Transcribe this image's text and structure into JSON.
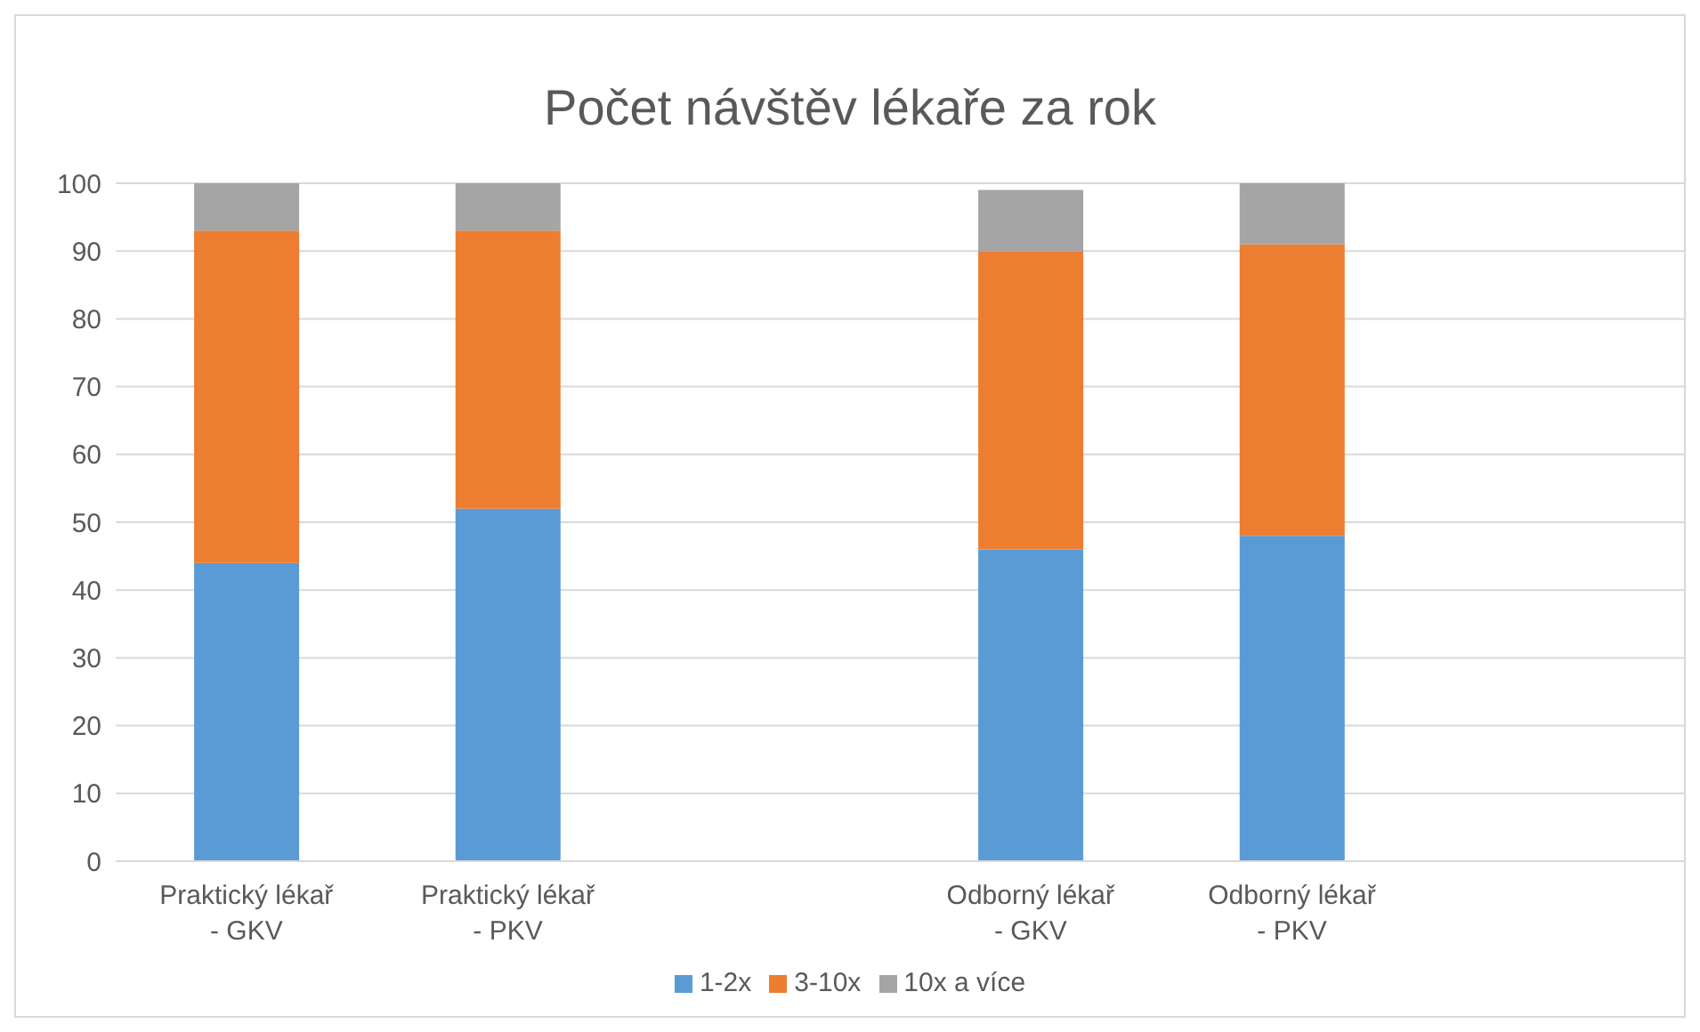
{
  "chart_data": {
    "type": "bar",
    "title": "Počet návštěv lékaře za rok",
    "categories": [
      "Praktický lékař - GKV",
      "Praktický lékař - PKV",
      null,
      "Odborný lékař - GKV",
      "Odborný lékař - PKV",
      null
    ],
    "series": [
      {
        "name": "1-2x",
        "color": "#5b9bd5",
        "values": [
          44,
          52,
          null,
          46,
          48,
          null
        ]
      },
      {
        "name": "3-10x",
        "color": "#ed7d31",
        "values": [
          49,
          41,
          null,
          44,
          43,
          null
        ]
      },
      {
        "name": "10x a více",
        "color": "#a5a5a5",
        "values": [
          7,
          7,
          null,
          9,
          9,
          null
        ]
      }
    ],
    "stacked": true,
    "ylim": [
      0,
      100
    ],
    "yticks": [
      0,
      10,
      20,
      30,
      40,
      50,
      60,
      70,
      80,
      90,
      100
    ],
    "grid": "y",
    "legend": "bottom"
  }
}
